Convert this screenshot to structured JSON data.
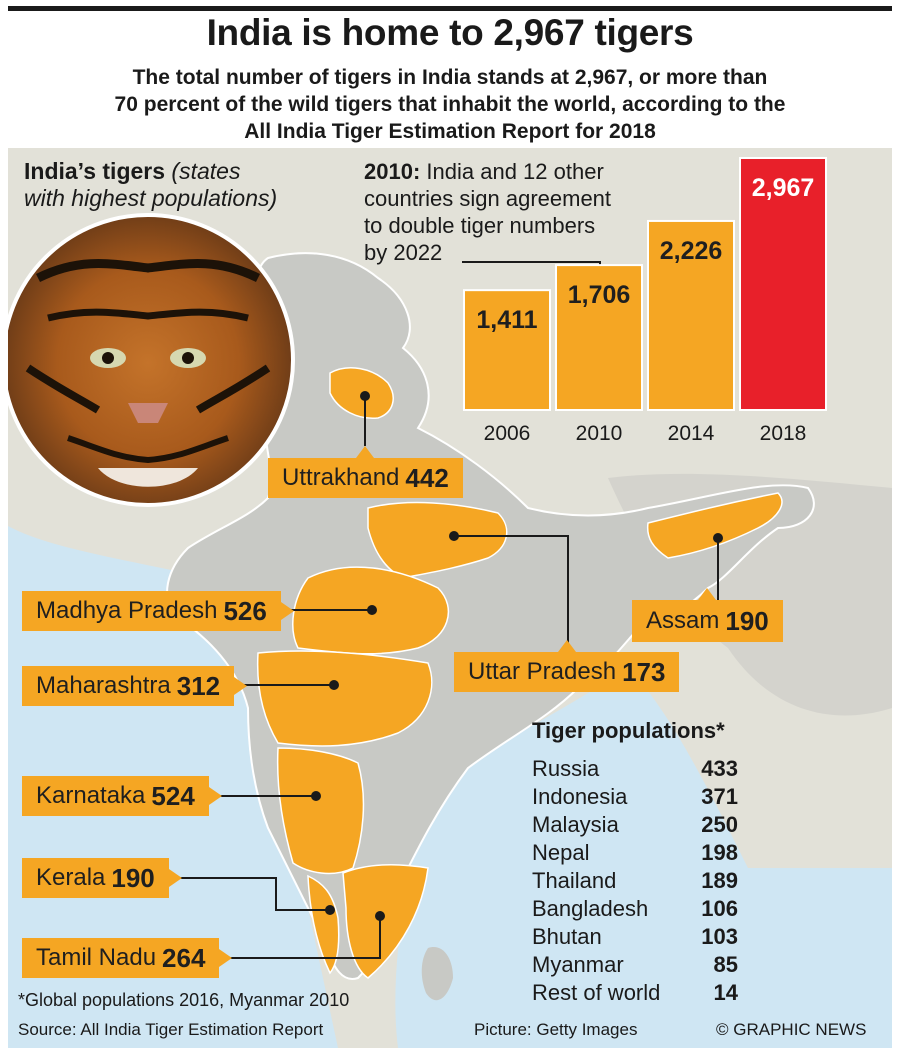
{
  "header": {
    "title": "India is home to 2,967 tigers",
    "subtitle_lines": [
      "The total number of tigers in India stands at 2,967, or more than",
      "70 percent of the wild tigers that inhabit the world, according to the",
      "All India Tiger Estimation Report for 2018"
    ]
  },
  "states_heading": {
    "bold": "India’s tigers",
    "italic_1": "(states",
    "italic_2": "with highest populations)"
  },
  "note_2010": {
    "year": "2010:",
    "line1": "India and 12 other",
    "line2": "countries sign agreement",
    "line3": "to double tiger numbers",
    "line4": "by 2022"
  },
  "states": [
    {
      "name": "Uttrakhand",
      "value": "442"
    },
    {
      "name": "Madhya Pradesh",
      "value": "526"
    },
    {
      "name": "Maharashtra",
      "value": "312"
    },
    {
      "name": "Karnataka",
      "value": "524"
    },
    {
      "name": "Kerala",
      "value": "190"
    },
    {
      "name": "Tamil Nadu",
      "value": "264"
    },
    {
      "name": "Assam",
      "value": "190"
    },
    {
      "name": "Uttar Pradesh",
      "value": "173"
    }
  ],
  "tiger_populations": {
    "heading": "Tiger populations*",
    "rows": [
      {
        "country": "Russia",
        "value": "433"
      },
      {
        "country": "Indonesia",
        "value": "371"
      },
      {
        "country": "Malaysia",
        "value": "250"
      },
      {
        "country": "Nepal",
        "value": "198"
      },
      {
        "country": "Thailand",
        "value": "189"
      },
      {
        "country": "Bangladesh",
        "value": "106"
      },
      {
        "country": "Bhutan",
        "value": "103"
      },
      {
        "country": "Myanmar",
        "value": "85"
      },
      {
        "country": "Rest of world",
        "value": "14"
      }
    ]
  },
  "footer": {
    "footnote": "*Global populations 2016, Myanmar 2010",
    "source": "Source: All India Tiger Estimation Report",
    "picture": "Picture: Getty Images",
    "credit": "© GRAPHIC NEWS"
  },
  "colors": {
    "bar": "#f5a623",
    "highlight": "#e8202a",
    "land": "#c8c9c5",
    "sea": "#cfe6f3",
    "panel": "#e2e1d8"
  },
  "chart_data": {
    "type": "bar",
    "categories": [
      "2006",
      "2010",
      "2014",
      "2018"
    ],
    "values": [
      1411,
      1706,
      2226,
      2967
    ],
    "value_labels": [
      "1,411",
      "1,706",
      "2,226",
      "2,967"
    ],
    "highlight_category": "2018",
    "ylim": [
      0,
      2967
    ]
  }
}
